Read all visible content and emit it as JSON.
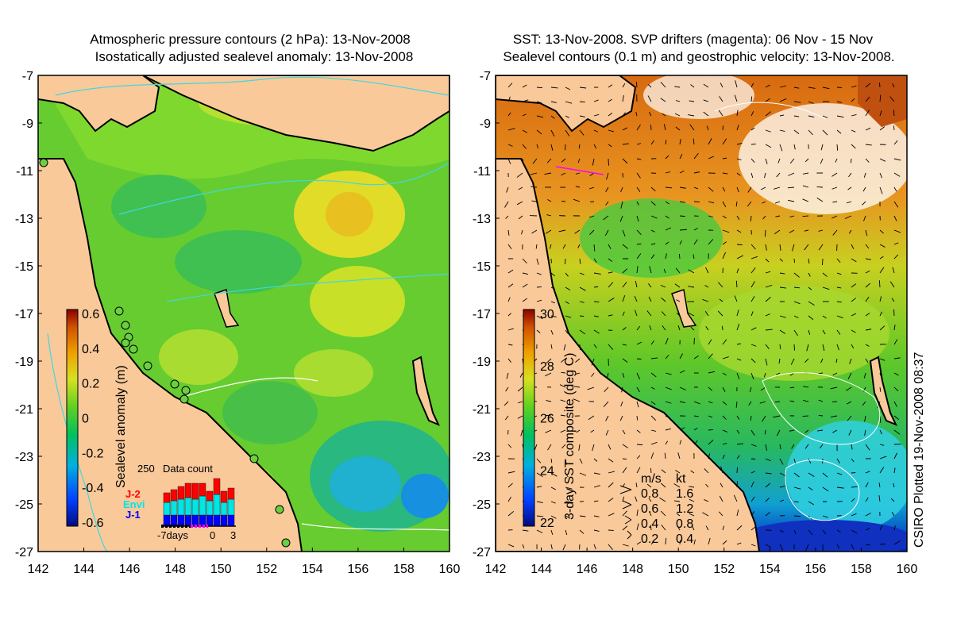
{
  "left_panel": {
    "title_line1": "Atmospheric pressure contours (2 hPa): 13-Nov-2008",
    "title_line2": "Isostatically adjusted sealevel anomaly: 13-Nov-2008",
    "colorbar": {
      "label": "Sealevel anomaly (m)",
      "ticks": [
        "0.6",
        "0.4",
        "0.2",
        "0",
        "-0.2",
        "-0.4",
        "-0.6"
      ]
    },
    "data_count": {
      "title": "Data count",
      "ymax_label": "250",
      "legend": [
        {
          "name": "J-2",
          "color": "#ff0000"
        },
        {
          "name": "Envi",
          "color": "#00e5e5"
        },
        {
          "name": "J-1",
          "color": "#0000ff"
        }
      ],
      "xlabels": [
        "-7days",
        "0",
        "3"
      ]
    }
  },
  "right_panel": {
    "title_line1": "SST: 13-Nov-2008. SVP drifters (magenta): 06 Nov - 15 Nov",
    "title_line2": "Sealevel contours (0.1 m) and geostrophic velocity: 13-Nov-2008.",
    "colorbar": {
      "label": "3-day SST composite (deg C)",
      "ticks": [
        "30",
        "28",
        "26",
        "24",
        "22"
      ]
    },
    "velocity_legend": {
      "header_ms": "m/s",
      "header_kt": "kt",
      "rows": [
        {
          "ms": "0.8",
          "kt": "1.6"
        },
        {
          "ms": "0.6",
          "kt": "1.2"
        },
        {
          "ms": "0.4",
          "kt": "0.8"
        },
        {
          "ms": "0.2",
          "kt": "0.4"
        }
      ]
    }
  },
  "x_ticks": [
    "142",
    "144",
    "146",
    "148",
    "150",
    "152",
    "154",
    "156",
    "158",
    "160"
  ],
  "y_ticks": [
    "-7",
    "-9",
    "-11",
    "-13",
    "-15",
    "-17",
    "-19",
    "-21",
    "-23",
    "-25",
    "-27"
  ],
  "credit": "CSIRO Plotted 19-Nov-2008 08:37",
  "colors": {
    "land": "#f9c99a",
    "coast": "#000000",
    "contour_cyan": "#40d8e0",
    "drifter": "#ff00ff"
  }
}
